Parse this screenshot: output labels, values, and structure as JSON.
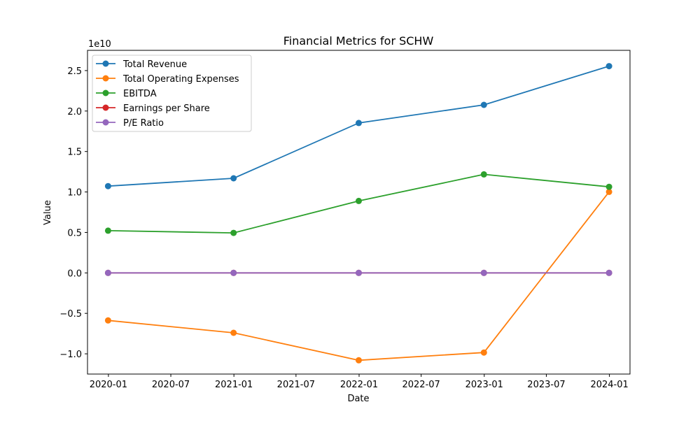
{
  "chart_data": {
    "type": "line",
    "title": "Financial Metrics for SCHW",
    "xlabel": "Date",
    "ylabel": "Value",
    "y_offset_label": "1e10",
    "x": [
      "2019-12-31",
      "2020-12-31",
      "2021-12-31",
      "2022-12-31",
      "2023-12-31"
    ],
    "x_ticks": [
      "2020-01",
      "2020-07",
      "2021-01",
      "2021-07",
      "2022-01",
      "2022-07",
      "2023-01",
      "2023-07",
      "2024-01"
    ],
    "y_ticks": [
      "−1.0",
      "−0.5",
      "0.0",
      "0.5",
      "1.0",
      "1.5",
      "2.0",
      "2.5"
    ],
    "xlim": [
      "2019-11-01",
      "2024-03-01"
    ],
    "ylim": [
      -12500000000,
      27500000000
    ],
    "grid": false,
    "legend_position": "upper-left",
    "series": [
      {
        "name": "Total Revenue",
        "color": "#1f77b4",
        "values": [
          10720000000,
          11690000000,
          18520000000,
          20760000000,
          25550000000
        ]
      },
      {
        "name": "Total Operating Expenses",
        "color": "#ff7f0e",
        "values": [
          -5870000000,
          -7400000000,
          -10800000000,
          -9840000000,
          10010000000
        ]
      },
      {
        "name": "EBITDA",
        "color": "#2ca02c",
        "values": [
          5220000000,
          4940000000,
          8890000000,
          12170000000,
          10640000000
        ]
      },
      {
        "name": "Earnings per Share",
        "color": "#d62728",
        "values": [
          2.67,
          2.12,
          2.83,
          3.5,
          2.54
        ]
      },
      {
        "name": "P/E Ratio",
        "color": "#9467bd",
        "values": [
          17.8,
          22.4,
          30.1,
          23.0,
          24.7
        ]
      }
    ]
  }
}
